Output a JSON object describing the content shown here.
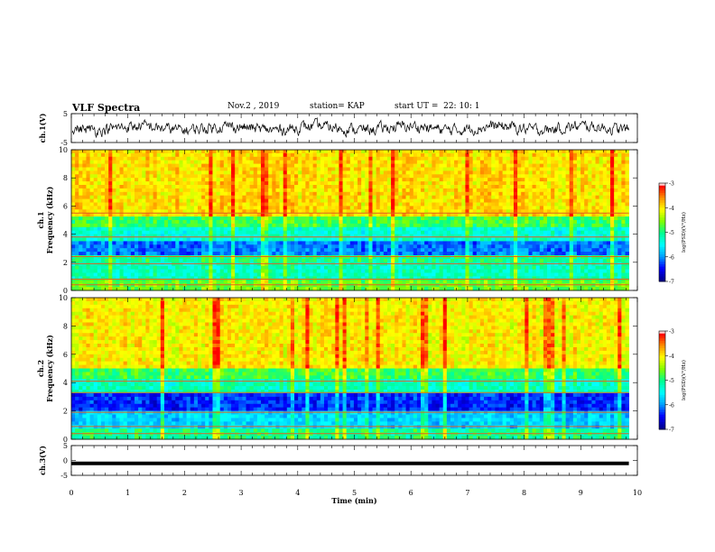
{
  "header": {
    "title": "VLF Spectra",
    "date": "Nov.2 , 2019",
    "station": "station= KAP",
    "start": "start UT =  22: 10: 1"
  },
  "chart_data": [
    {
      "type": "line",
      "panel": "ch1-waveform",
      "ylabel": "ch.1(V)",
      "ylim": [
        -5,
        5
      ],
      "yticks": [
        "5",
        "-5"
      ],
      "xlim": [
        0,
        10
      ]
    },
    {
      "type": "heatmap",
      "panel": "ch1-spectrogram",
      "ylabel_top": "ch.1",
      "ylabel": "Frequency (kHz)",
      "ylim": [
        0,
        10
      ],
      "yticks": [
        "0",
        "2",
        "4",
        "6",
        "8",
        "10"
      ],
      "xlim": [
        0,
        9.85
      ],
      "colorbar": {
        "label": "log(PSD)(V²/Hz)",
        "range": [
          -7,
          -3
        ],
        "ticks": [
          "-3",
          "-4",
          "-5",
          "-6",
          "-7"
        ]
      }
    },
    {
      "type": "heatmap",
      "panel": "ch2-spectrogram",
      "ylabel_top": "ch.2",
      "ylabel": "Frequency (kHz)",
      "ylim": [
        0,
        10
      ],
      "yticks": [
        "0",
        "2",
        "4",
        "6",
        "8",
        "10"
      ],
      "xlim": [
        0,
        9.85
      ],
      "colorbar": {
        "label": "log(PSD)(V²/Hz)",
        "range": [
          -7,
          -3
        ],
        "ticks": [
          "-3",
          "-4",
          "-5",
          "-6",
          "-7"
        ]
      }
    },
    {
      "type": "line",
      "panel": "ch3-waveform",
      "ylabel": "ch.3(V)",
      "ylim": [
        -5,
        5
      ],
      "yticks": [
        "5",
        "0",
        "-5"
      ],
      "level": -1,
      "xlim": [
        0,
        10
      ]
    }
  ],
  "xaxis": {
    "label": "Time (min)",
    "ticks": [
      "0",
      "1",
      "2",
      "3",
      "4",
      "5",
      "6",
      "7",
      "8",
      "9",
      "10"
    ]
  },
  "colors": {
    "waveform": "#000000",
    "colormap": [
      "#000090",
      "#0000ff",
      "#00a0ff",
      "#00ffff",
      "#00ff90",
      "#80ff00",
      "#ffff00",
      "#ff9000",
      "#ff0000",
      "#ffffff"
    ]
  }
}
